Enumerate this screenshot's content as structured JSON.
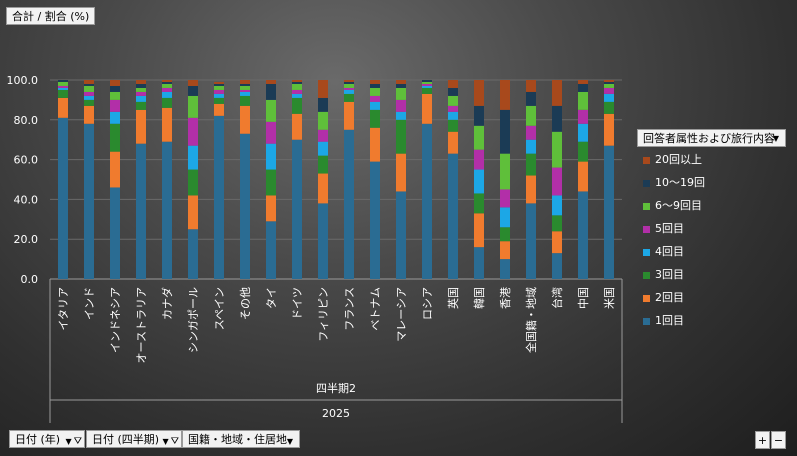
{
  "value_field": "合計 / 割合 (%)",
  "legend_field": "回答者属性および旅行内容",
  "filters": {
    "year": "日付 (年)",
    "quarter": "日付 (四半期)",
    "country": "国籍・地域・住居地"
  },
  "zoom": {
    "plus": "+",
    "minus": "−"
  },
  "colors": {
    "1回目": "#2a6c93",
    "2回目": "#f07b2e",
    "3回目": "#2a8a2e",
    "4回目": "#1ca7e6",
    "5回目": "#b22fa8",
    "6〜9回目": "#5fbf3a",
    "10〜19回": "#1b3b55",
    "20回以上": "#a8491c"
  },
  "chart_data": {
    "type": "bar",
    "stacked": true,
    "ylim": [
      0,
      100
    ],
    "yticks": [
      "0.0",
      "20.0",
      "40.0",
      "60.0",
      "80.0",
      "100.0"
    ],
    "quarter_label": "四半期2",
    "year_label": "2025",
    "legend": [
      "20回以上",
      "10〜19回",
      "6〜9回目",
      "5回目",
      "4回目",
      "3回目",
      "2回目",
      "1回目"
    ],
    "categories": [
      "イタリア",
      "インド",
      "インドネシア",
      "オーストラリア",
      "カナダ",
      "シンガポール",
      "スペイン",
      "その他",
      "タイ",
      "ドイツ",
      "フィリピン",
      "フランス",
      "ベトナム",
      "マレーシア",
      "ロシア",
      "英国",
      "韓国",
      "香港",
      "全国籍・地域",
      "台湾",
      "中国",
      "米国"
    ],
    "series": [
      {
        "name": "1回目",
        "values": [
          81,
          78,
          46,
          68,
          69,
          25,
          82,
          73,
          29,
          70,
          38,
          75,
          59,
          44,
          78,
          63,
          16,
          10,
          38,
          13,
          44,
          67
        ]
      },
      {
        "name": "2回目",
        "values": [
          10,
          9,
          18,
          17,
          17,
          17,
          6,
          14,
          13,
          13,
          15,
          14,
          17,
          19,
          15,
          11,
          17,
          9,
          14,
          11,
          15,
          16
        ]
      },
      {
        "name": "3回目",
        "values": [
          4,
          3,
          14,
          4,
          5,
          13,
          3,
          5,
          13,
          8,
          9,
          4,
          9,
          17,
          3,
          6,
          10,
          7,
          11,
          8,
          10,
          6
        ]
      },
      {
        "name": "4回目",
        "values": [
          1,
          2,
          6,
          3,
          3,
          12,
          2,
          2,
          13,
          2,
          7,
          2,
          4,
          4,
          1,
          4,
          12,
          10,
          7,
          10,
          9,
          4
        ]
      },
      {
        "name": "5回目",
        "values": [
          1,
          2,
          6,
          2,
          2,
          14,
          2,
          1,
          11,
          2,
          6,
          1,
          3,
          6,
          1,
          3,
          10,
          9,
          7,
          14,
          7,
          3
        ]
      },
      {
        "name": "6〜9回目",
        "values": [
          2,
          3,
          4,
          2,
          2,
          11,
          2,
          2,
          11,
          3,
          9,
          2,
          4,
          6,
          1,
          5,
          12,
          18,
          10,
          18,
          9,
          2
        ]
      },
      {
        "name": "10〜19回",
        "values": [
          1,
          1,
          3,
          2,
          1,
          5,
          1,
          1,
          8,
          1,
          7,
          1,
          2,
          2,
          1,
          4,
          10,
          22,
          7,
          13,
          4,
          1
        ]
      },
      {
        "name": "20回以上",
        "values": [
          0,
          2,
          3,
          2,
          1,
          3,
          1,
          2,
          2,
          1,
          9,
          1,
          2,
          2,
          0,
          4,
          13,
          15,
          6,
          13,
          2,
          1
        ]
      }
    ]
  }
}
